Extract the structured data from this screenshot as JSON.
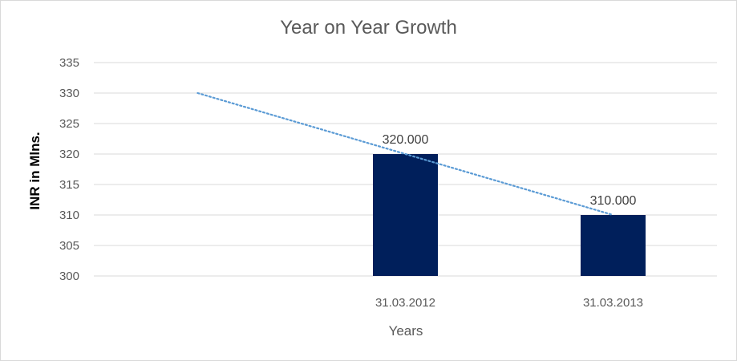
{
  "chart_data": {
    "type": "bar",
    "title": "Year on Year Growth",
    "xlabel": "Years",
    "ylabel": "INR in Mlns.",
    "categories": [
      "",
      "31.03.2012",
      "31.03.2013"
    ],
    "values": [
      null,
      320,
      310
    ],
    "data_labels": [
      "",
      "320.000",
      "310.000"
    ],
    "trendline": {
      "type": "linear",
      "style": "dotted",
      "values": [
        330,
        320,
        310
      ]
    },
    "ylim": [
      300,
      335
    ],
    "yticks": [
      300,
      305,
      310,
      315,
      320,
      325,
      330,
      335
    ],
    "grid": true,
    "legend": "none",
    "colors": {
      "bar": "#001f5b",
      "trendline": "#5b9bd5",
      "grid": "#d9d9d9"
    }
  }
}
